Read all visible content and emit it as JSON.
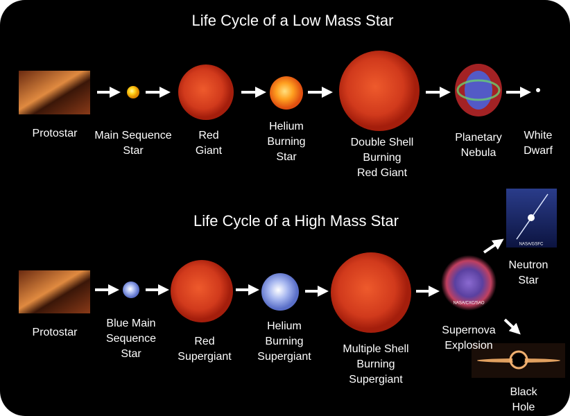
{
  "low_mass": {
    "title": "Life Cycle of a Low Mass Star",
    "stages": [
      {
        "lines": [
          "Protostar"
        ]
      },
      {
        "lines": [
          "Main Sequence",
          "Star"
        ]
      },
      {
        "lines": [
          "Red",
          "Giant"
        ]
      },
      {
        "lines": [
          "Helium",
          "Burning",
          "Star"
        ]
      },
      {
        "lines": [
          "Double Shell",
          "Burning",
          "Red Giant"
        ]
      },
      {
        "lines": [
          "Planetary",
          "Nebula"
        ]
      },
      {
        "lines": [
          "White",
          "Dwarf"
        ]
      }
    ]
  },
  "high_mass": {
    "title": "Life Cycle of a High Mass Star",
    "stages": [
      {
        "lines": [
          "Protostar"
        ]
      },
      {
        "lines": [
          "Blue Main",
          "Sequence",
          "Star"
        ]
      },
      {
        "lines": [
          "Red",
          "Supergiant"
        ]
      },
      {
        "lines": [
          "Helium",
          "Burning",
          "Supergiant"
        ]
      },
      {
        "lines": [
          "Multiple Shell",
          "Burning",
          "Supergiant"
        ]
      },
      {
        "lines": [
          "Supernova",
          "Explosion"
        ],
        "credit": "NASA/CXC/SAO"
      },
      {
        "lines": [
          "Neutron",
          "Star"
        ],
        "credit": "NASA/GSFC"
      },
      {
        "lines": [
          "Black",
          "Hole"
        ]
      }
    ]
  }
}
